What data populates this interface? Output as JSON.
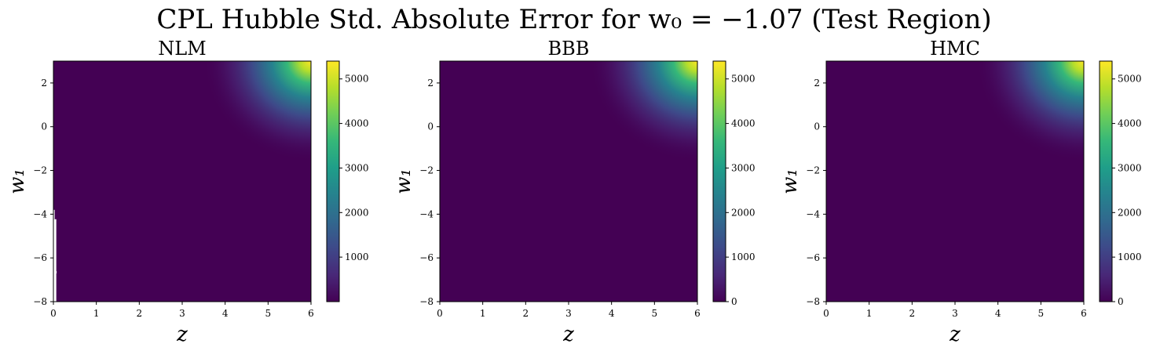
{
  "figure": {
    "title": "CPL Hubble Std. Absolute Error for w₀ = −1.07 (Test Region)"
  },
  "chart_data": [
    {
      "type": "heatmap",
      "title": "NLM",
      "xlabel": "z",
      "ylabel": "w₁",
      "xlim": [
        0,
        6
      ],
      "ylim": [
        -8,
        3
      ],
      "xticks": [
        "0",
        "1",
        "2",
        "3",
        "4",
        "5",
        "6"
      ],
      "yticks": [
        "−8",
        "−6",
        "−4",
        "−2",
        "0",
        "2"
      ],
      "colormap": "viridis",
      "colorbar": {
        "range": [
          0,
          5400
        ],
        "ticks": [
          "1000",
          "2000",
          "3000",
          "4000",
          "5000"
        ]
      },
      "peak_location": {
        "z": 6,
        "w1": 3,
        "value": 5400
      },
      "missing_region": {
        "z": [
          0,
          0.15
        ],
        "w1": [
          -8,
          -3.8
        ]
      }
    },
    {
      "type": "heatmap",
      "title": "BBB",
      "xlabel": "z",
      "ylabel": "w₁",
      "xlim": [
        0,
        6
      ],
      "ylim": [
        -8,
        3
      ],
      "xticks": [
        "0",
        "1",
        "2",
        "3",
        "4",
        "5",
        "6"
      ],
      "yticks": [
        "−8",
        "−6",
        "−4",
        "−2",
        "0",
        "2"
      ],
      "colormap": "viridis",
      "colorbar": {
        "range": [
          0,
          5400
        ],
        "ticks": [
          "0",
          "1000",
          "2000",
          "3000",
          "4000",
          "5000"
        ]
      },
      "peak_location": {
        "z": 6,
        "w1": 3,
        "value": 5400
      }
    },
    {
      "type": "heatmap",
      "title": "HMC",
      "xlabel": "z",
      "ylabel": "w₁",
      "xlim": [
        0,
        6
      ],
      "ylim": [
        -8,
        3
      ],
      "xticks": [
        "0",
        "1",
        "2",
        "3",
        "4",
        "5",
        "6"
      ],
      "yticks": [
        "−8",
        "−6",
        "−4",
        "−2",
        "0",
        "2"
      ],
      "colormap": "viridis",
      "colorbar": {
        "range": [
          0,
          5400
        ],
        "ticks": [
          "0",
          "1000",
          "2000",
          "3000",
          "4000",
          "5000"
        ]
      },
      "peak_location": {
        "z": 6,
        "w1": 3,
        "value": 5400
      }
    }
  ]
}
